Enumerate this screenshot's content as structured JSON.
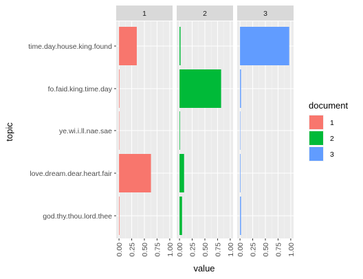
{
  "chart_data": {
    "type": "bar",
    "orientation": "horizontal",
    "faceted_by": "document",
    "xlabel": "value",
    "ylabel": "topic",
    "xlim": [
      0,
      1
    ],
    "xticks": [
      "0.00",
      "0.25",
      "0.50",
      "0.75",
      "1.00"
    ],
    "categories": [
      "time.day.house.king.found",
      "fo.faid.king.time.day",
      "ye.wi.i.ll.nae.sae",
      "love.dream.dear.heart.fair",
      "god.thy.thou.lord.thee"
    ],
    "panels": [
      {
        "name": "1",
        "color": "#F8766D",
        "values": [
          0.35,
          0.01,
          0.005,
          0.63,
          0.01
        ]
      },
      {
        "name": "2",
        "color": "#00BA38",
        "values": [
          0.02,
          0.82,
          0.01,
          0.09,
          0.05
        ]
      },
      {
        "name": "3",
        "color": "#619CFF",
        "values": [
          0.97,
          0.02,
          0.005,
          0.01,
          0.02
        ]
      }
    ],
    "legend": {
      "title": "document",
      "position": "right",
      "entries": [
        {
          "label": "1",
          "color": "#F8766D"
        },
        {
          "label": "2",
          "color": "#00BA38"
        },
        {
          "label": "3",
          "color": "#619CFF"
        }
      ]
    }
  }
}
